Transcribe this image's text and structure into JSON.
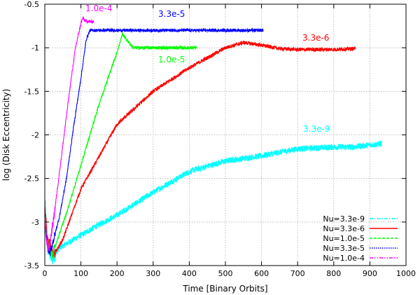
{
  "chart_data": {
    "type": "line",
    "title": "",
    "xlabel": "Time [Binary Orbits]",
    "ylabel": "log (Disk Eccentricity)",
    "xlim": [
      0,
      1000
    ],
    "ylim": [
      -3.5,
      -0.5
    ],
    "xticks": [
      "0",
      "100",
      "200",
      "300",
      "400",
      "500",
      "600",
      "700",
      "800",
      "900",
      "1000"
    ],
    "yticks": [
      "-0.5",
      "-1",
      "-1.5",
      "-2",
      "-2.5",
      "-3",
      "-3.5"
    ],
    "grid": true,
    "legend_position": "bottom-right",
    "series": [
      {
        "name": "Nu=3.3e-9",
        "color": "#00ffff",
        "style": "dash-dot",
        "noise": 0.035,
        "annotation": "3.3e-9",
        "points": [
          [
            0,
            -2.75
          ],
          [
            8,
            -3.3
          ],
          [
            20,
            -3.42
          ],
          [
            40,
            -3.3
          ],
          [
            80,
            -3.2
          ],
          [
            150,
            -3.03
          ],
          [
            200,
            -2.92
          ],
          [
            300,
            -2.66
          ],
          [
            400,
            -2.42
          ],
          [
            500,
            -2.3
          ],
          [
            600,
            -2.24
          ],
          [
            650,
            -2.2
          ],
          [
            700,
            -2.16
          ],
          [
            800,
            -2.14
          ],
          [
            850,
            -2.14
          ],
          [
            932,
            -2.1
          ]
        ]
      },
      {
        "name": "Nu=3.3e-6",
        "color": "#ff0000",
        "style": "solid",
        "noise": 0.022,
        "annotation": "3.3e-6",
        "points": [
          [
            0,
            -2.85
          ],
          [
            8,
            -3.2
          ],
          [
            25,
            -3.38
          ],
          [
            50,
            -3.2
          ],
          [
            100,
            -2.62
          ],
          [
            200,
            -1.88
          ],
          [
            300,
            -1.5
          ],
          [
            400,
            -1.23
          ],
          [
            500,
            -1.0
          ],
          [
            550,
            -0.94
          ],
          [
            600,
            -0.97
          ],
          [
            650,
            -1.01
          ],
          [
            700,
            -1.02
          ],
          [
            800,
            -1.02
          ],
          [
            860,
            -1.01
          ]
        ]
      },
      {
        "name": "Nu=1.0e-5",
        "color": "#00ff00",
        "style": "dashed",
        "noise": 0.02,
        "annotation": "1.0e-5",
        "points": [
          [
            0,
            -3.0
          ],
          [
            8,
            -3.25
          ],
          [
            20,
            -3.38
          ],
          [
            35,
            -3.2
          ],
          [
            60,
            -2.9
          ],
          [
            100,
            -2.35
          ],
          [
            150,
            -1.65
          ],
          [
            200,
            -1.05
          ],
          [
            215,
            -0.84
          ],
          [
            225,
            -0.9
          ],
          [
            245,
            -1.0
          ],
          [
            300,
            -1.0
          ],
          [
            420,
            -1.0
          ]
        ]
      },
      {
        "name": "Nu=3.3e-5",
        "color": "#0000ff",
        "style": "dotted",
        "noise": 0.018,
        "annotation": "3.3e-5",
        "points": [
          [
            0,
            -3.0
          ],
          [
            8,
            -3.3
          ],
          [
            15,
            -3.35
          ],
          [
            40,
            -2.95
          ],
          [
            60,
            -2.5
          ],
          [
            80,
            -1.9
          ],
          [
            100,
            -1.35
          ],
          [
            115,
            -0.9
          ],
          [
            125,
            -0.8
          ],
          [
            200,
            -0.8
          ],
          [
            300,
            -0.8
          ],
          [
            400,
            -0.8
          ],
          [
            500,
            -0.8
          ],
          [
            605,
            -0.8
          ]
        ]
      },
      {
        "name": "Nu=1.0e-4",
        "color": "#ff00ff",
        "style": "dash-dot-dot",
        "noise": 0.02,
        "annotation": "1.0e-4",
        "points": [
          [
            0,
            -2.95
          ],
          [
            5,
            -3.25
          ],
          [
            12,
            -3.3
          ],
          [
            25,
            -2.95
          ],
          [
            40,
            -2.45
          ],
          [
            55,
            -1.95
          ],
          [
            70,
            -1.45
          ],
          [
            85,
            -1.0
          ],
          [
            100,
            -0.72
          ],
          [
            105,
            -0.66
          ],
          [
            112,
            -0.69
          ],
          [
            125,
            -0.7
          ],
          [
            135,
            -0.7
          ]
        ]
      }
    ]
  }
}
